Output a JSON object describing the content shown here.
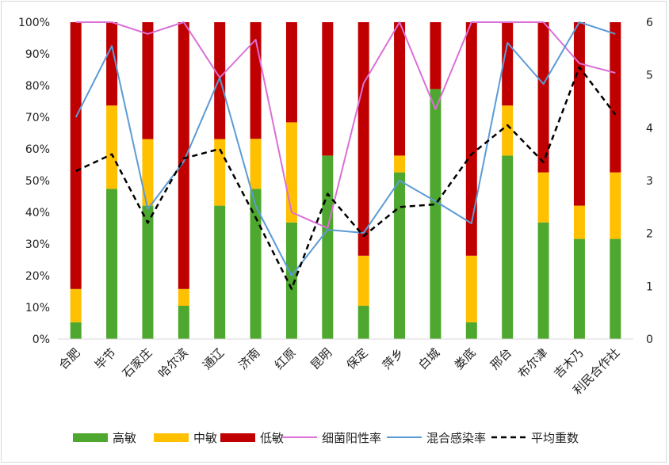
{
  "chart_data": {
    "type": "bar",
    "stacked": true,
    "title": "",
    "categories": [
      "合肥",
      "毕节",
      "石家庄",
      "哈尔滨",
      "通辽",
      "济南",
      "红原",
      "昆明",
      "保定",
      "萍乡",
      "白城",
      "娄底",
      "邢台",
      "布尔津",
      "吉木乃",
      "利民合作社"
    ],
    "y_left": {
      "ylim": [
        0,
        100
      ],
      "ticks": [
        "0%",
        "10%",
        "20%",
        "30%",
        "40%",
        "50%",
        "60%",
        "70%",
        "80%",
        "90%",
        "100%"
      ]
    },
    "y_right": {
      "ylim": [
        0,
        6
      ],
      "ticks": [
        "0",
        "1",
        "2",
        "3",
        "4",
        "5",
        "6"
      ]
    },
    "grid": false,
    "legend_position": "bottom",
    "series": [
      {
        "name": "高敏",
        "kind": "bar",
        "axis": "left",
        "color": "#4ea72e",
        "values": [
          5.3,
          47.4,
          42.1,
          10.5,
          42.1,
          47.4,
          36.8,
          57.9,
          10.5,
          52.6,
          78.9,
          5.3,
          57.9,
          36.8,
          31.6,
          31.6
        ]
      },
      {
        "name": "中敏",
        "kind": "bar",
        "axis": "left",
        "color": "#ffc000",
        "values": [
          10.5,
          26.3,
          21.0,
          5.3,
          21.0,
          15.8,
          31.6,
          0,
          15.8,
          5.3,
          0,
          21.0,
          15.8,
          15.8,
          10.5,
          21.0
        ]
      },
      {
        "name": "低敏",
        "kind": "bar",
        "axis": "left",
        "color": "#c00000",
        "values": [
          84.2,
          26.3,
          36.9,
          84.2,
          36.9,
          36.8,
          31.6,
          42.1,
          73.7,
          42.1,
          21.1,
          73.7,
          26.3,
          47.4,
          57.9,
          47.4
        ]
      },
      {
        "name": "细菌阳性率",
        "kind": "line",
        "axis": "left",
        "color": "#da70d6",
        "dash": "solid",
        "values": [
          100,
          100,
          96.3,
          100,
          82.5,
          94.5,
          40,
          35,
          80.7,
          100,
          72.5,
          100,
          100,
          100,
          87,
          84
        ]
      },
      {
        "name": "混合感染率",
        "kind": "line",
        "axis": "left",
        "color": "#5b9bd5",
        "dash": "solid",
        "values": [
          70,
          92.5,
          41,
          56,
          82.5,
          42,
          20,
          34.5,
          33.5,
          50,
          43.5,
          36.5,
          93.5,
          80.5,
          100,
          96.3
        ]
      },
      {
        "name": "平均重数",
        "kind": "line",
        "axis": "right",
        "color": "#000000",
        "dash": "dashed",
        "values": [
          3.18,
          3.5,
          2.2,
          3.42,
          3.6,
          2.3,
          0.95,
          2.75,
          1.95,
          2.5,
          2.55,
          3.5,
          4.05,
          3.35,
          5.15,
          4.25
        ]
      }
    ]
  }
}
